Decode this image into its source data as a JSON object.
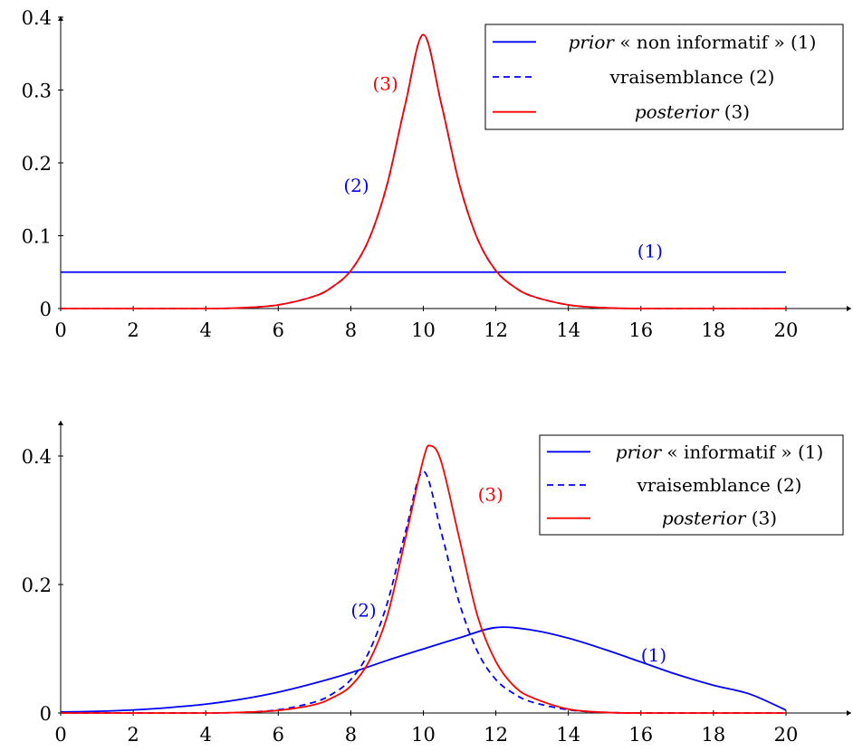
{
  "chart_data": [
    {
      "type": "line",
      "xlim": [
        0,
        21.8
      ],
      "ylim": [
        0,
        0.4
      ],
      "xticks": [
        0,
        2,
        4,
        6,
        8,
        10,
        12,
        14,
        16,
        18,
        20
      ],
      "xtick_labels": [
        "0",
        "2",
        "4",
        "6",
        "8",
        "10",
        "12",
        "14",
        "16",
        "18",
        "20"
      ],
      "yticks": [
        0,
        0.1,
        0.2,
        0.3,
        0.4
      ],
      "ytick_labels": [
        "0",
        "0.1",
        "0.2",
        "0.3",
        "0.4"
      ],
      "grid": false,
      "legend_position": "top-right",
      "series": [
        {
          "key": "prior",
          "name_italic": "prior",
          "name_rest": " « non informatif » (1)",
          "color": "#0000ff",
          "dash": "solid",
          "x": [
            0,
            20
          ],
          "y": [
            0.05,
            0.05
          ]
        },
        {
          "key": "likelihood",
          "name_italic": "",
          "name_rest": "vraisemblance (2)",
          "color": "#0000ff",
          "dash": "dashed",
          "x": [
            0,
            2,
            4,
            5,
            6,
            7,
            7.5,
            8,
            8.5,
            9,
            9.5,
            10,
            10.5,
            11,
            11.5,
            12,
            12.5,
            13,
            14,
            15,
            16,
            18,
            20
          ],
          "y": [
            0,
            0,
            0,
            0.001,
            0.005,
            0.017,
            0.03,
            0.052,
            0.095,
            0.17,
            0.28,
            0.376,
            0.28,
            0.17,
            0.095,
            0.052,
            0.03,
            0.017,
            0.005,
            0.001,
            0,
            0,
            0
          ]
        },
        {
          "key": "posterior",
          "name_italic": "posterior",
          "name_rest": " (3)",
          "color": "#ff0000",
          "dash": "solid",
          "x": [
            0,
            2,
            4,
            5,
            6,
            7,
            7.5,
            8,
            8.5,
            9,
            9.5,
            10,
            10.5,
            11,
            11.5,
            12,
            12.5,
            13,
            14,
            15,
            16,
            18,
            20
          ],
          "y": [
            0,
            0,
            0,
            0.001,
            0.005,
            0.017,
            0.03,
            0.052,
            0.095,
            0.17,
            0.28,
            0.376,
            0.28,
            0.17,
            0.095,
            0.052,
            0.03,
            0.017,
            0.005,
            0.001,
            0,
            0,
            0
          ]
        }
      ],
      "annotations": [
        {
          "text": "(3)",
          "x": 8.6,
          "y": 0.3,
          "color": "#ff0000"
        },
        {
          "text": "(2)",
          "x": 7.8,
          "y": 0.16,
          "color": "#0000ff"
        },
        {
          "text": "(1)",
          "x": 15.9,
          "y": 0.07,
          "color": "#0000ff"
        }
      ]
    },
    {
      "type": "line",
      "xlim": [
        0,
        21.8
      ],
      "ylim": [
        0,
        0.45
      ],
      "xticks": [
        0,
        2,
        4,
        6,
        8,
        10,
        12,
        14,
        16,
        18,
        20
      ],
      "xtick_labels": [
        "0",
        "2",
        "4",
        "6",
        "8",
        "10",
        "12",
        "14",
        "16",
        "18",
        "20"
      ],
      "yticks": [
        0,
        0.2,
        0.4
      ],
      "ytick_labels": [
        "0",
        "0.2",
        "0.4"
      ],
      "grid": false,
      "legend_position": "top-right",
      "series": [
        {
          "key": "prior",
          "name_italic": "prior",
          "name_rest": " « informatif » (1)",
          "color": "#0000ff",
          "dash": "solid",
          "x": [
            0,
            1,
            2,
            3,
            4,
            5,
            6,
            7,
            8,
            9,
            10,
            11,
            12,
            13,
            14,
            15,
            16,
            17,
            18,
            19,
            20
          ],
          "y": [
            0.0015,
            0.0026,
            0.0047,
            0.0085,
            0.0137,
            0.0216,
            0.0324,
            0.0465,
            0.0627,
            0.0818,
            0.0997,
            0.1171,
            0.133,
            0.1291,
            0.1165,
            0.0989,
            0.0794,
            0.0598,
            0.0432,
            0.0295,
            0.0044
          ]
        },
        {
          "key": "likelihood",
          "name_italic": "",
          "name_rest": "vraisemblance (2)",
          "color": "#0000ff",
          "dash": "dashed",
          "x": [
            0,
            2,
            4,
            5,
            6,
            7,
            7.5,
            8,
            8.5,
            9,
            9.5,
            10,
            10.5,
            11,
            11.5,
            12,
            12.5,
            13,
            14,
            15,
            16,
            18,
            20
          ],
          "y": [
            0,
            0,
            0,
            0.001,
            0.005,
            0.017,
            0.03,
            0.052,
            0.095,
            0.17,
            0.28,
            0.376,
            0.28,
            0.17,
            0.095,
            0.052,
            0.03,
            0.017,
            0.005,
            0.001,
            0,
            0,
            0
          ]
        },
        {
          "key": "posterior",
          "name_italic": "posterior",
          "name_rest": " (3)",
          "color": "#ff0000",
          "dash": "solid",
          "x": [
            0,
            2,
            4,
            5,
            6,
            7,
            7.5,
            8,
            8.5,
            9,
            9.5,
            10,
            10.2,
            10.5,
            11,
            11.5,
            12,
            12.5,
            13,
            14,
            15,
            16,
            18,
            20
          ],
          "y": [
            0,
            0,
            0,
            0.001,
            0.004,
            0.013,
            0.024,
            0.042,
            0.08,
            0.15,
            0.27,
            0.395,
            0.416,
            0.39,
            0.27,
            0.15,
            0.08,
            0.042,
            0.024,
            0.006,
            0.001,
            0,
            0,
            0
          ]
        }
      ],
      "annotations": [
        {
          "text": "(3)",
          "x": 11.5,
          "y": 0.33,
          "color": "#ff0000"
        },
        {
          "text": "(2)",
          "x": 8.0,
          "y": 0.15,
          "color": "#0000ff"
        },
        {
          "text": "(1)",
          "x": 16.0,
          "y": 0.08,
          "color": "#0000ff"
        }
      ]
    }
  ]
}
